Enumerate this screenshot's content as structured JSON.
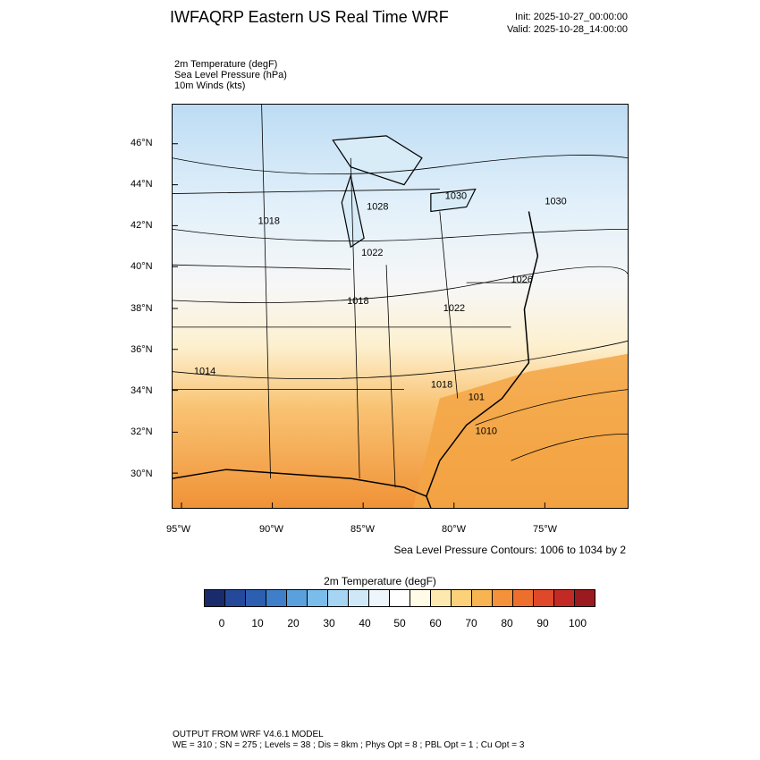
{
  "header": {
    "title": "IWFAQRP Eastern US Real Time WRF",
    "init": "Init: 2025-10-27_00:00:00",
    "valid": "Valid: 2025-10-28_14:00:00"
  },
  "fields": [
    "2m Temperature   (degF)",
    "Sea Level Pressure   (hPa)",
    "10m Winds   (kts)"
  ],
  "map": {
    "lat_labels": [
      "46°N",
      "44°N",
      "42°N",
      "40°N",
      "38°N",
      "36°N",
      "34°N",
      "32°N",
      "30°N"
    ],
    "lon_labels": [
      "95°W",
      "90°W",
      "85°W",
      "80°W",
      "75°W"
    ],
    "isobar_labels": [
      "1030",
      "1028",
      "1018",
      "1030",
      "1022",
      "1026",
      "1018",
      "1022",
      "1014",
      "1018",
      "101",
      "1010"
    ],
    "colors": {
      "cold": "#c6e0f5",
      "mild": "#f4f4f4",
      "warm": "#f5b450",
      "hot": "#f08a30"
    }
  },
  "contour_note": "Sea Level Pressure Contours: 1006 to 1034 by 2",
  "colorbar": {
    "title": "2m Temperature  (degF)",
    "labels": [
      "0",
      "10",
      "20",
      "30",
      "40",
      "50",
      "60",
      "70",
      "80",
      "90",
      "100"
    ],
    "colors": [
      "#1a2b6b",
      "#24489a",
      "#2d5fb0",
      "#3f7ec8",
      "#5aa0dc",
      "#7bbdea",
      "#a5d5f3",
      "#cfe8f8",
      "#eef6fc",
      "#ffffff",
      "#fffbe6",
      "#fde9b0",
      "#fbd27a",
      "#f8b450",
      "#f3923a",
      "#ed6f2e",
      "#e0482a",
      "#c42a25",
      "#9a1a1f"
    ]
  },
  "footer": {
    "line1": "OUTPUT FROM WRF V4.6.1 MODEL",
    "line2": "WE = 310 ; SN = 275 ; Levels = 38 ; Dis = 8km ; Phys Opt = 8 ; PBL Opt = 1 ; Cu Opt = 3"
  }
}
